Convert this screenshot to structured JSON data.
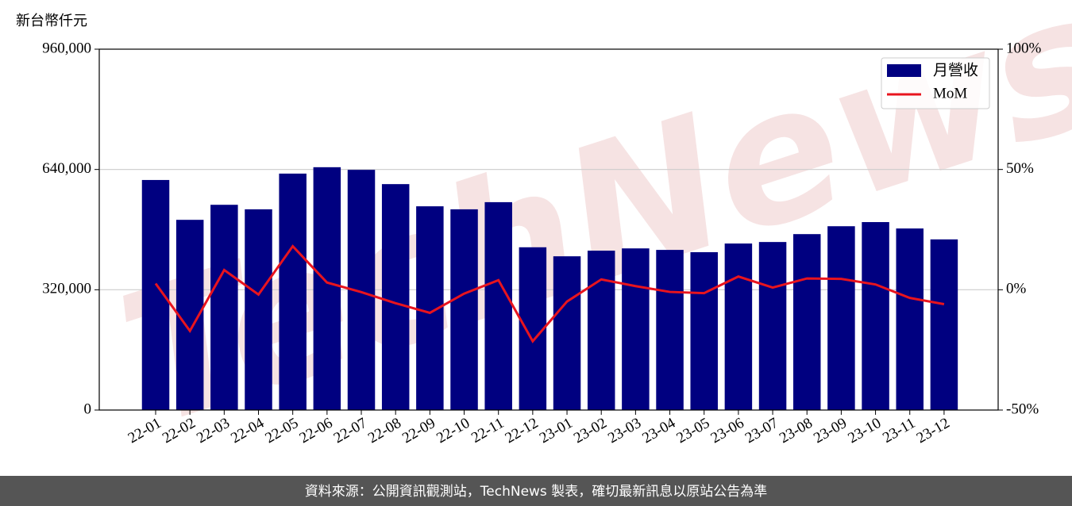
{
  "chart_data": {
    "type": "bar-line",
    "y_label": "新台幣仟元",
    "categories": [
      "22-01",
      "22-02",
      "22-03",
      "22-04",
      "22-05",
      "22-06",
      "22-07",
      "22-08",
      "22-09",
      "22-10",
      "22-11",
      "22-12",
      "23-01",
      "23-02",
      "23-03",
      "23-04",
      "23-05",
      "23-06",
      "23-07",
      "23-08",
      "23-09",
      "23-10",
      "23-11",
      "23-12"
    ],
    "series": [
      {
        "name": "月營收",
        "type": "bar",
        "color": "#000080",
        "values": [
          612000,
          506000,
          546000,
          534000,
          629000,
          646000,
          639000,
          601000,
          542000,
          534000,
          553000,
          433000,
          409000,
          424000,
          430000,
          426000,
          420000,
          443000,
          447000,
          468000,
          489000,
          500000,
          483000,
          454000
        ]
      },
      {
        "name": "MoM",
        "type": "line",
        "axis": "y2",
        "color": "#e8141e",
        "values": [
          2.6,
          -17.1,
          8.2,
          -2.0,
          18.1,
          3.0,
          -1.0,
          -5.6,
          -9.6,
          -1.6,
          4.0,
          -21.4,
          -4.9,
          4.3,
          1.5,
          -0.9,
          -1.4,
          5.5,
          0.9,
          4.7,
          4.5,
          2.2,
          -3.4,
          -6.0
        ]
      }
    ],
    "ylim": [
      0,
      960000
    ],
    "yticks": [
      0,
      {
        "value": 320000,
        "label": "320,000"
      },
      {
        "value": 640000,
        "label": "640,000"
      },
      {
        "value": 960000,
        "label": "960,000"
      }
    ],
    "y2lim": [
      -50,
      100
    ],
    "y2ticks": [
      {
        "value": -50,
        "label": "-50%"
      },
      {
        "value": 0,
        "label": "0%"
      },
      {
        "value": 50,
        "label": "50%"
      },
      {
        "value": 100,
        "label": "100%"
      }
    ],
    "grid": true,
    "legend": "upper right",
    "watermark": "TechNews",
    "source": "資料來源：公開資訊觀測站，TechNews 製表，確切最新訊息以原站公告為準"
  }
}
